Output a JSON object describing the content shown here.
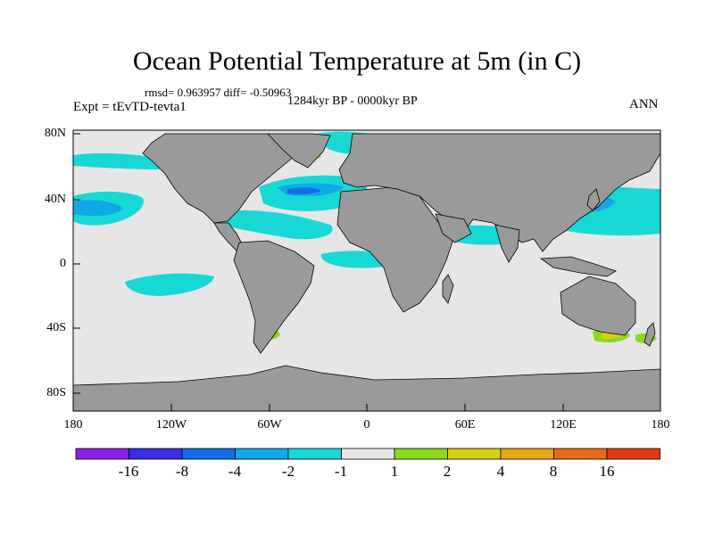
{
  "title": "Ocean Potential Temperature at 5m (in C)",
  "stats": "rmsd= 0.963957 diff= -0.50963",
  "period": "1284kyr BP - 0000kyr BP",
  "expt": "Expt = tEvTD-tevta1",
  "season": "ANN",
  "axes": {
    "y_ticks": [
      "80N",
      "40N",
      "0",
      "40S",
      "80S"
    ],
    "x_ticks": [
      "180",
      "120W",
      "60W",
      "0",
      "60E",
      "120E",
      "180"
    ]
  },
  "colorbar": {
    "labels": [
      "-16",
      "-8",
      "-4",
      "-2",
      "-1",
      "1",
      "2",
      "4",
      "8",
      "16"
    ],
    "colors": [
      "#8a1fe6",
      "#3b2ee0",
      "#0f6fe6",
      "#10a8e6",
      "#18d8d6",
      "#e6e6e6",
      "#8cd81c",
      "#d6cf10",
      "#e6a618",
      "#e66a12",
      "#e03a12"
    ]
  },
  "map_colors": {
    "land": "#9a9a9a",
    "ocean": "#e6e6e6",
    "cool_light": "#18d8d6",
    "cool_mid": "#10a8e6",
    "cool_strong": "#0f6fe6",
    "warm_light": "#8cd81c",
    "warm_mid": "#d6cf10"
  }
}
